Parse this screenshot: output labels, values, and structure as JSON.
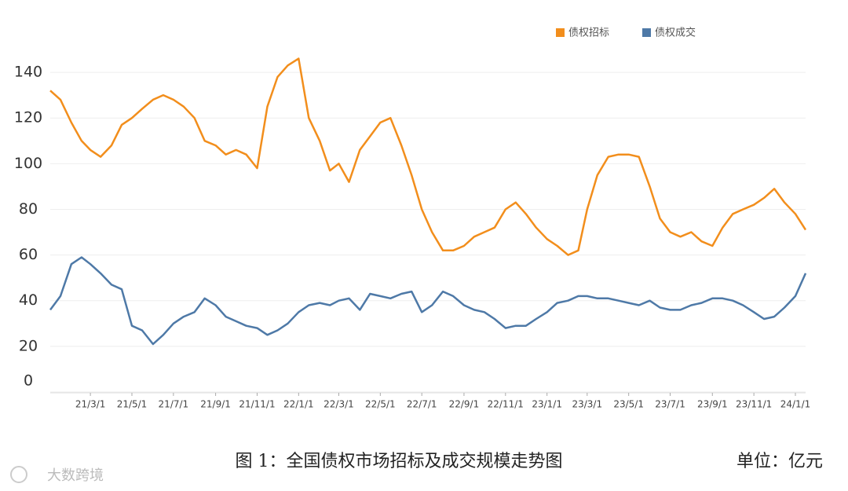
{
  "chart_data": {
    "type": "line",
    "caption": "图 1：全国债权市场招标及成交规模走势图",
    "unit_label": "单位：亿元",
    "watermark": "大数跨境",
    "x": [
      "21/1/1",
      "21/1/16",
      "21/2/1",
      "21/2/16",
      "21/3/1",
      "21/3/16",
      "21/4/1",
      "21/4/16",
      "21/5/1",
      "21/5/16",
      "21/6/1",
      "21/6/16",
      "21/7/1",
      "21/7/16",
      "21/8/1",
      "21/8/16",
      "21/9/1",
      "21/9/16",
      "21/10/1",
      "21/10/16",
      "21/11/1",
      "21/11/16",
      "21/12/1",
      "21/12/16",
      "22/1/1",
      "22/1/16",
      "22/2/1",
      "22/2/16",
      "22/3/1",
      "22/3/16",
      "22/4/1",
      "22/4/16",
      "22/5/1",
      "22/5/16",
      "22/6/1",
      "22/6/16",
      "22/7/1",
      "22/7/16",
      "22/8/1",
      "22/8/16",
      "22/9/1",
      "22/9/16",
      "22/10/1",
      "22/10/16",
      "22/11/1",
      "22/11/16",
      "22/12/1",
      "22/12/16",
      "23/1/1",
      "23/1/16",
      "23/2/1",
      "23/2/16",
      "23/3/1",
      "23/3/16",
      "23/4/1",
      "23/4/16",
      "23/5/1",
      "23/5/16",
      "23/6/1",
      "23/6/16",
      "23/7/1",
      "23/7/16",
      "23/8/1",
      "23/8/16",
      "23/9/1",
      "23/9/16",
      "23/10/1",
      "23/10/16",
      "23/11/1",
      "23/11/16",
      "23/12/1",
      "23/12/16",
      "24/1/1",
      "24/1/16"
    ],
    "series": [
      {
        "name": "债权招标",
        "color": "#f28e1c",
        "values": [
          132,
          128,
          118,
          110,
          106,
          103,
          108,
          117,
          120,
          124,
          128,
          130,
          128,
          125,
          120,
          110,
          108,
          104,
          106,
          104,
          98,
          125,
          138,
          143,
          146,
          120,
          110,
          97,
          100,
          92,
          106,
          112,
          118,
          120,
          108,
          95,
          80,
          70,
          62,
          62,
          64,
          68,
          70,
          72,
          80,
          83,
          78,
          72,
          67,
          64,
          60,
          62,
          80,
          95,
          103,
          104,
          104,
          103,
          90,
          76,
          70,
          68,
          70,
          66,
          64,
          72,
          78,
          80,
          82,
          85,
          89,
          83,
          78,
          71
        ]
      },
      {
        "name": "债权成交",
        "color": "#4e79a7",
        "values": [
          36,
          42,
          56,
          59,
          56,
          52,
          47,
          45,
          29,
          27,
          21,
          25,
          30,
          33,
          35,
          41,
          38,
          33,
          31,
          29,
          28,
          25,
          27,
          30,
          35,
          38,
          39,
          38,
          40,
          41,
          36,
          43,
          42,
          41,
          43,
          44,
          35,
          38,
          44,
          42,
          38,
          36,
          35,
          32,
          28,
          29,
          29,
          32,
          35,
          39,
          40,
          42,
          42,
          41,
          41,
          40,
          39,
          38,
          40,
          37,
          36,
          36,
          38,
          39,
          41,
          41,
          40,
          38,
          35,
          32,
          33,
          37,
          42,
          52
        ]
      }
    ],
    "xlim": [
      "21/1/1",
      "24/1/16"
    ],
    "xticks": [
      "21/3/1",
      "21/5/1",
      "21/7/1",
      "21/9/1",
      "21/11/1",
      "22/1/1",
      "22/3/1",
      "22/5/1",
      "22/7/1",
      "22/9/1",
      "22/11/1",
      "23/1/1",
      "23/3/1",
      "23/5/1",
      "23/7/1",
      "23/9/1",
      "23/11/1",
      "24/1/1"
    ],
    "ylim": [
      0,
      150
    ],
    "yticks": [
      0,
      20,
      40,
      60,
      80,
      100,
      120,
      140
    ],
    "grid": true
  }
}
